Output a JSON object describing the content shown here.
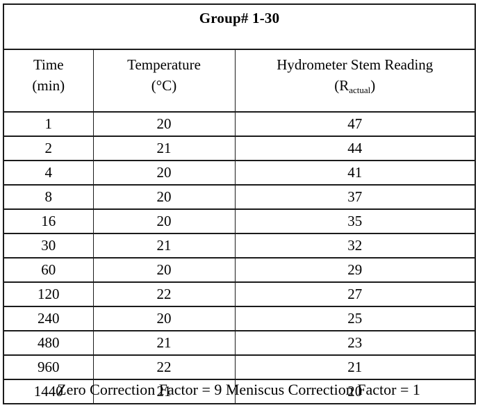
{
  "title": "Group# 1-30",
  "columns": {
    "time": {
      "name": "Time",
      "unit": "(min)"
    },
    "temperature": {
      "name": "Temperature",
      "unit": "(°C)"
    },
    "reading": {
      "name": "Hydrometer Stem Reading",
      "unit_prefix": "(R",
      "unit_sub": "actual",
      "unit_suffix": ")"
    }
  },
  "rows": [
    {
      "time": "1",
      "temp": "20",
      "reading": "47"
    },
    {
      "time": "2",
      "temp": "21",
      "reading": "44"
    },
    {
      "time": "4",
      "temp": "20",
      "reading": "41"
    },
    {
      "time": "8",
      "temp": "20",
      "reading": "37"
    },
    {
      "time": "16",
      "temp": "20",
      "reading": "35"
    },
    {
      "time": "30",
      "temp": "21",
      "reading": "32"
    },
    {
      "time": "60",
      "temp": "20",
      "reading": "29"
    },
    {
      "time": "120",
      "temp": "22",
      "reading": "27"
    },
    {
      "time": "240",
      "temp": "20",
      "reading": "25"
    },
    {
      "time": "480",
      "temp": "21",
      "reading": "23"
    },
    {
      "time": "960",
      "temp": "22",
      "reading": "21"
    },
    {
      "time": "1440",
      "temp": "21",
      "reading": "20"
    }
  ],
  "footer": "Zero Correction Factor = 9 Meniscus Correction Factor = 1",
  "colors": {
    "text": "#000000",
    "border": "#1b1b1b",
    "background": "#ffffff"
  }
}
